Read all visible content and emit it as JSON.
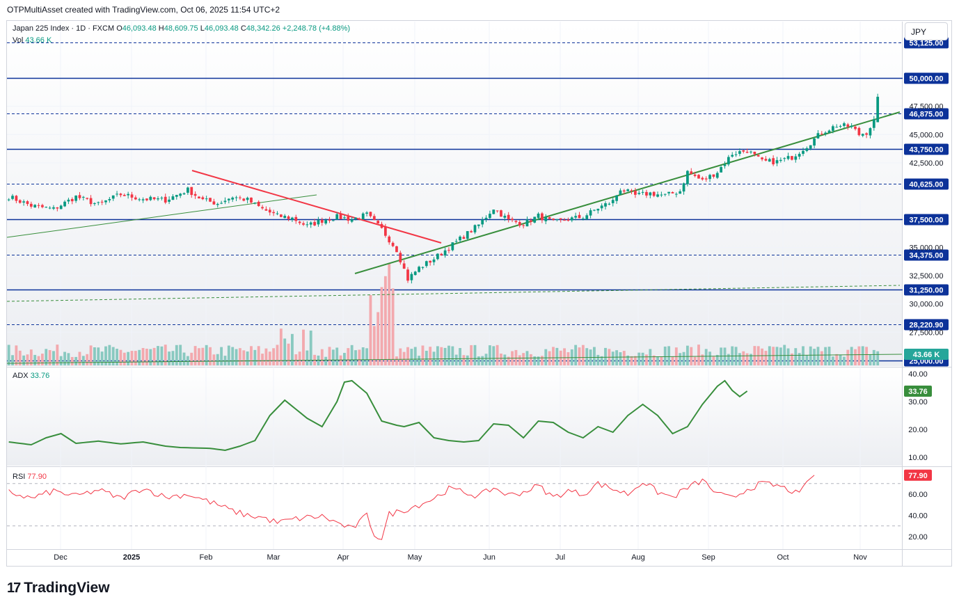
{
  "header": {
    "credit": "OTPMultiAsset created with TradingView.com, Oct 06, 2025 11:54 UTC+2"
  },
  "legend": {
    "symbol": "Japan 225 Index · 1D · FXCM",
    "o_label": "O",
    "o": "46,093.48",
    "h_label": "H",
    "h": "48,609.75",
    "l_label": "L",
    "l": "46,093.48",
    "c_label": "C",
    "c": "48,342.26",
    "change": "+2,248.78 (+4.88%)",
    "vol_label": "Vol",
    "vol": "43.66 K",
    "adx_label": "ADX",
    "adx": "33.76",
    "rsi_label": "RSI",
    "rsi": "77.90"
  },
  "currency": "JPY",
  "footer": {
    "brand": "TradingView",
    "mark": "17"
  },
  "colors": {
    "up": "#089981",
    "down": "#f23645",
    "level": "#0c3299",
    "trend_green": "#388e3c",
    "trend_red": "#f23645",
    "adx": "#388e3c",
    "rsi": "#f23645"
  },
  "chart_data": {
    "type": "candlestick",
    "title": "Japan 225 Index · 1D · FXCM",
    "ylim": [
      24500,
      55000
    ],
    "x_tick_labels": [
      "Dec",
      "2025",
      "Feb",
      "Mar",
      "Apr",
      "May",
      "Jun",
      "Jul",
      "Aug",
      "Sep",
      "Oct",
      "Nov"
    ],
    "price_axis_ticks": [
      "47,500.00",
      "45,000.00",
      "42,500.00",
      "35,000.00",
      "32,500.00",
      "30,000.00",
      "27,500.00"
    ],
    "levels": [
      {
        "label": "53,125.00",
        "value": 53125,
        "style": "dashed"
      },
      {
        "label": "50,000.00",
        "value": 50000,
        "style": "solid"
      },
      {
        "label": "46,875.00",
        "value": 46875,
        "style": "dashed"
      },
      {
        "label": "43,750.00",
        "value": 43750,
        "style": "solid"
      },
      {
        "label": "40,625.00",
        "value": 40625,
        "style": "dashed"
      },
      {
        "label": "37,500.00",
        "value": 37500,
        "style": "solid"
      },
      {
        "label": "34,375.00",
        "value": 34375,
        "style": "dashed"
      },
      {
        "label": "31,250.00",
        "value": 31250,
        "style": "solid"
      },
      {
        "label": "28,220.90",
        "value": 28220.9,
        "style": "dashed"
      },
      {
        "label": "25,000.00",
        "value": 25000,
        "style": "solid"
      }
    ],
    "vol_label": "43.66 K",
    "last_price_label": "46,875.00",
    "price_anchors": [
      [
        0,
        39500
      ],
      [
        6,
        38700
      ],
      [
        12,
        38400
      ],
      [
        18,
        39500
      ],
      [
        24,
        38800
      ],
      [
        30,
        39700
      ],
      [
        36,
        39300
      ],
      [
        42,
        39200
      ],
      [
        48,
        40100
      ],
      [
        52,
        39200
      ],
      [
        56,
        38900
      ],
      [
        60,
        39500
      ],
      [
        64,
        39200
      ],
      [
        68,
        38400
      ],
      [
        72,
        37800
      ],
      [
        76,
        37600
      ],
      [
        80,
        36900
      ],
      [
        84,
        37400
      ],
      [
        88,
        37700
      ],
      [
        92,
        37500
      ],
      [
        96,
        37900
      ],
      [
        100,
        36600
      ],
      [
        104,
        34800
      ],
      [
        107,
        32200
      ],
      [
        110,
        33200
      ],
      [
        114,
        34000
      ],
      [
        118,
        35000
      ],
      [
        122,
        36000
      ],
      [
        126,
        37000
      ],
      [
        130,
        38500
      ],
      [
        134,
        37400
      ],
      [
        138,
        37100
      ],
      [
        142,
        37800
      ],
      [
        146,
        37200
      ],
      [
        150,
        37500
      ],
      [
        154,
        37700
      ],
      [
        158,
        38500
      ],
      [
        162,
        39100
      ],
      [
        164,
        40200
      ],
      [
        168,
        39600
      ],
      [
        172,
        39800
      ],
      [
        176,
        39600
      ],
      [
        180,
        40000
      ],
      [
        182,
        41700
      ],
      [
        186,
        40900
      ],
      [
        190,
        41700
      ],
      [
        194,
        43300
      ],
      [
        198,
        43600
      ],
      [
        202,
        42600
      ],
      [
        206,
        42600
      ],
      [
        210,
        43000
      ],
      [
        214,
        44000
      ],
      [
        218,
        45200
      ],
      [
        222,
        45800
      ],
      [
        226,
        45700
      ],
      [
        228,
        45000
      ],
      [
        230,
        45200
      ],
      [
        232,
        46200
      ],
      [
        233,
        48342
      ]
    ],
    "adx_axis": [
      "40.00",
      "30.00",
      "20.00",
      "10.00"
    ],
    "adx_anchors": [
      [
        0,
        15.5
      ],
      [
        6,
        14.5
      ],
      [
        10,
        17
      ],
      [
        14,
        18.5
      ],
      [
        18,
        15
      ],
      [
        24,
        15.8
      ],
      [
        30,
        14.8
      ],
      [
        36,
        15.5
      ],
      [
        42,
        14
      ],
      [
        46,
        13.5
      ],
      [
        54,
        13.2
      ],
      [
        58,
        12.5
      ],
      [
        62,
        14
      ],
      [
        66,
        16
      ],
      [
        70,
        25
      ],
      [
        74,
        30.5
      ],
      [
        80,
        24
      ],
      [
        84,
        21
      ],
      [
        88,
        30
      ],
      [
        90,
        37
      ],
      [
        92,
        37.5
      ],
      [
        96,
        33
      ],
      [
        100,
        23
      ],
      [
        104,
        21.5
      ],
      [
        106,
        21
      ],
      [
        110,
        22.5
      ],
      [
        114,
        17
      ],
      [
        118,
        16
      ],
      [
        122,
        15.5
      ],
      [
        126,
        16
      ],
      [
        130,
        22
      ],
      [
        134,
        21.5
      ],
      [
        138,
        17
      ],
      [
        142,
        23
      ],
      [
        146,
        22.5
      ],
      [
        150,
        19
      ],
      [
        154,
        17
      ],
      [
        158,
        21
      ],
      [
        162,
        19
      ],
      [
        166,
        25
      ],
      [
        170,
        29
      ],
      [
        174,
        25
      ],
      [
        178,
        18.5
      ],
      [
        182,
        21
      ],
      [
        186,
        29
      ],
      [
        190,
        35.5
      ],
      [
        192,
        37.5
      ],
      [
        194,
        34
      ],
      [
        196,
        31.8
      ],
      [
        198,
        33.76
      ]
    ],
    "adx_last_label": "33.76",
    "rsi_axis": [
      "60.00",
      "40.00",
      "20.00"
    ],
    "rsi_anchors": [
      [
        0,
        62
      ],
      [
        6,
        56
      ],
      [
        12,
        63
      ],
      [
        18,
        58
      ],
      [
        24,
        64
      ],
      [
        30,
        56
      ],
      [
        36,
        66
      ],
      [
        42,
        57
      ],
      [
        48,
        60
      ],
      [
        52,
        55
      ],
      [
        56,
        50
      ],
      [
        60,
        44
      ],
      [
        64,
        40
      ],
      [
        68,
        38
      ],
      [
        72,
        33
      ],
      [
        76,
        36
      ],
      [
        80,
        38
      ],
      [
        84,
        39
      ],
      [
        88,
        33
      ],
      [
        92,
        27
      ],
      [
        96,
        40
      ],
      [
        98,
        22
      ],
      [
        100,
        18
      ],
      [
        102,
        41
      ],
      [
        106,
        45
      ],
      [
        110,
        50
      ],
      [
        114,
        56
      ],
      [
        118,
        65
      ],
      [
        122,
        62
      ],
      [
        126,
        58
      ],
      [
        130,
        66
      ],
      [
        134,
        59
      ],
      [
        138,
        62
      ],
      [
        142,
        68
      ],
      [
        146,
        57
      ],
      [
        150,
        63
      ],
      [
        154,
        60
      ],
      [
        158,
        70
      ],
      [
        162,
        65
      ],
      [
        166,
        60
      ],
      [
        170,
        72
      ],
      [
        174,
        62
      ],
      [
        178,
        57
      ],
      [
        182,
        66
      ],
      [
        186,
        73
      ],
      [
        190,
        60
      ],
      [
        194,
        56
      ],
      [
        198,
        65
      ],
      [
        202,
        70
      ],
      [
        206,
        68
      ],
      [
        210,
        63
      ],
      [
        212,
        59
      ],
      [
        214,
        72
      ],
      [
        216,
        77.9
      ]
    ],
    "rsi_last_label": "77.90"
  }
}
